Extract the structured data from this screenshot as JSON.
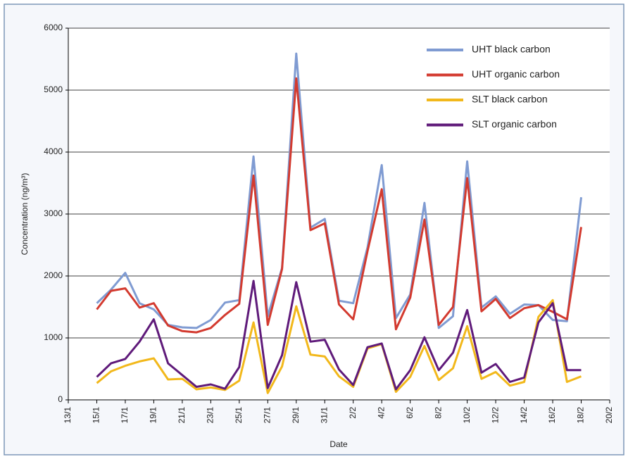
{
  "chart_data": {
    "type": "line",
    "ylabel": "Concentration (ng/m³)",
    "xlabel": "Date",
    "categories": [
      "13/1",
      null,
      "15/1",
      null,
      "17/1",
      null,
      "19/1",
      null,
      "21/1",
      null,
      "23/1",
      null,
      "25/1",
      null,
      "27/1",
      null,
      "29/1",
      null,
      "31/1",
      null,
      "2/2",
      null,
      "4/2",
      null,
      "6/2",
      null,
      "8/2",
      null,
      "10/2",
      null,
      "12/2",
      null,
      "14/2",
      null,
      "16/2",
      null,
      "18/2",
      null,
      "20/2"
    ],
    "ylim": [
      0,
      6000
    ],
    "yticks": [
      0,
      1000,
      2000,
      3000,
      4000,
      5000,
      6000
    ],
    "grid": true,
    "legend": "upper right",
    "series": [
      {
        "name": "UHT black carbon",
        "color": "#7f9bd2",
        "values": [
          null,
          null,
          1560,
          1780,
          2050,
          1560,
          1460,
          1210,
          1170,
          1160,
          1290,
          1570,
          1610,
          3930,
          1350,
          2130,
          5590,
          2780,
          2920,
          1600,
          1560,
          2460,
          3790,
          1320,
          1700,
          3180,
          1160,
          1350,
          3850,
          1490,
          1670,
          1390,
          1540,
          1530,
          1290,
          1270,
          3270,
          null,
          null
        ]
      },
      {
        "name": "UHT organic carbon",
        "color": "#d33a2f",
        "values": [
          null,
          null,
          1460,
          1760,
          1800,
          1490,
          1560,
          1200,
          1110,
          1090,
          1160,
          1370,
          1550,
          3620,
          1210,
          2110,
          5190,
          2740,
          2850,
          1540,
          1300,
          2400,
          3400,
          1140,
          1650,
          2910,
          1210,
          1500,
          3580,
          1430,
          1630,
          1320,
          1480,
          1530,
          1420,
          1300,
          2790,
          null,
          null
        ]
      },
      {
        "name": "SLT black carbon",
        "color": "#f2b81b",
        "values": [
          null,
          null,
          270,
          460,
          550,
          620,
          670,
          330,
          340,
          170,
          200,
          160,
          310,
          1250,
          110,
          540,
          1510,
          730,
          700,
          380,
          210,
          830,
          900,
          130,
          370,
          870,
          320,
          510,
          1190,
          340,
          450,
          230,
          290,
          1340,
          1610,
          290,
          380,
          null,
          null
        ]
      },
      {
        "name": "SLT organic carbon",
        "color": "#5f1a7a",
        "values": [
          null,
          null,
          370,
          590,
          660,
          940,
          1300,
          590,
          400,
          210,
          250,
          180,
          530,
          1920,
          190,
          720,
          1900,
          940,
          970,
          490,
          240,
          850,
          910,
          170,
          480,
          1010,
          480,
          760,
          1450,
          440,
          580,
          290,
          360,
          1250,
          1560,
          480,
          480,
          null,
          null
        ]
      }
    ]
  }
}
